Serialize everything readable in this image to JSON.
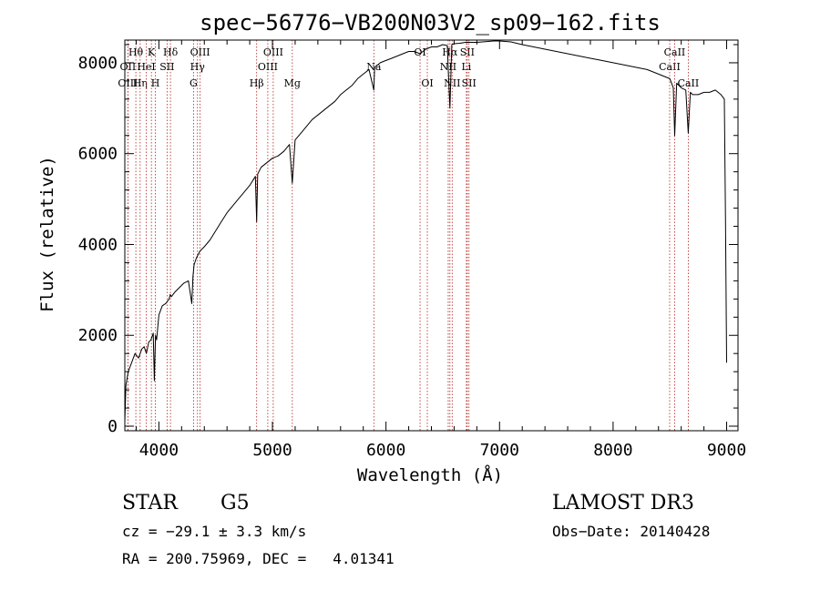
{
  "chart_data": {
    "type": "line",
    "title": "spec−56776−VB200N03V2_sp09−162.fits",
    "xlabel": "Wavelength (Å)",
    "ylabel": "Flux (relative)",
    "xlim": [
      3700,
      9100
    ],
    "ylim": [
      -100,
      8500
    ],
    "xticks": [
      4000,
      5000,
      6000,
      7000,
      8000,
      9000
    ],
    "yticks": [
      0,
      2000,
      4000,
      6000,
      8000
    ],
    "line_color": "#000000",
    "marker_color": "#b22222",
    "series": [
      {
        "x": [
          3700,
          3710,
          3730,
          3760,
          3790,
          3820,
          3850,
          3870,
          3890,
          3910,
          3930,
          3950,
          3960,
          3970,
          3980,
          4000,
          4030,
          4060,
          4090,
          4100,
          4110,
          4140,
          4180,
          4220,
          4260,
          4290,
          4300,
          4310,
          4330,
          4360,
          4400,
          4450,
          4500,
          4550,
          4600,
          4650,
          4700,
          4750,
          4800,
          4850,
          4861,
          4870,
          4900,
          4950,
          5000,
          5050,
          5100,
          5150,
          5175,
          5200,
          5250,
          5300,
          5350,
          5400,
          5450,
          5500,
          5550,
          5600,
          5650,
          5700,
          5750,
          5800,
          5850,
          5893,
          5900,
          5950,
          6000,
          6050,
          6100,
          6150,
          6200,
          6250,
          6300,
          6350,
          6400,
          6450,
          6500,
          6540,
          6563,
          6580,
          6600,
          6650,
          6700,
          6750,
          6800,
          6850,
          6900,
          6950,
          7000,
          7050,
          7100,
          7200,
          7300,
          7400,
          7500,
          7600,
          7700,
          7800,
          7900,
          8000,
          8100,
          8200,
          8300,
          8400,
          8450,
          8500,
          8530,
          8542,
          8560,
          8580,
          8600,
          8640,
          8662,
          8680,
          8700,
          8750,
          8800,
          8850,
          8900,
          8950,
          8980,
          8990,
          9000
        ],
        "y": [
          100,
          900,
          1200,
          1400,
          1600,
          1500,
          1700,
          1750,
          1600,
          1850,
          1900,
          2050,
          1000,
          2000,
          1900,
          2450,
          2650,
          2700,
          2800,
          2900,
          2850,
          2950,
          3050,
          3150,
          3200,
          2700,
          3300,
          3550,
          3700,
          3850,
          3950,
          4100,
          4300,
          4500,
          4700,
          4850,
          5000,
          5150,
          5300,
          5500,
          4500,
          5550,
          5700,
          5800,
          5900,
          5950,
          6050,
          6200,
          5350,
          6300,
          6450,
          6600,
          6750,
          6850,
          6950,
          7050,
          7150,
          7300,
          7400,
          7500,
          7650,
          7750,
          7850,
          7400,
          7900,
          8000,
          8050,
          8100,
          8150,
          8200,
          8250,
          8250,
          8200,
          8300,
          8350,
          8350,
          8400,
          8380,
          7000,
          8400,
          8420,
          8430,
          8450,
          8450,
          8450,
          8460,
          8470,
          8480,
          8480,
          8470,
          8460,
          8400,
          8350,
          8300,
          8250,
          8200,
          8150,
          8100,
          8050,
          8000,
          7950,
          7900,
          7850,
          7750,
          7700,
          7650,
          7450,
          6400,
          7550,
          7500,
          7450,
          7400,
          6450,
          7350,
          7300,
          7300,
          7350,
          7350,
          7400,
          7300,
          7200,
          4500,
          1400
        ]
      }
    ],
    "line_markers": [
      {
        "label": "Hθ",
        "x": 3797,
        "row": 0
      },
      {
        "label": "OII",
        "x": 3727,
        "row": 1
      },
      {
        "label": "OIII",
        "x": 3727,
        "row": 2
      },
      {
        "label": "Hη",
        "x": 3835,
        "row": 2
      },
      {
        "label": "HeI",
        "x": 3889,
        "row": 1
      },
      {
        "label": "K",
        "x": 3934,
        "row": 0
      },
      {
        "label": "H",
        "x": 3969,
        "row": 2
      },
      {
        "label": "SII",
        "x": 4072,
        "row": 1
      },
      {
        "label": "Hδ",
        "x": 4102,
        "row": 0
      },
      {
        "label": "OIII",
        "x": 4363,
        "row": 0
      },
      {
        "label": "Hγ",
        "x": 4340,
        "row": 1
      },
      {
        "label": "G",
        "x": 4305,
        "row": 2
      },
      {
        "label": "Hβ",
        "x": 4861,
        "row": 2
      },
      {
        "label": "OIII",
        "x": 5007,
        "row": 0
      },
      {
        "label": "OIII",
        "x": 4959,
        "row": 1
      },
      {
        "label": "Mg",
        "x": 5175,
        "row": 2
      },
      {
        "label": "Na",
        "x": 5893,
        "row": 1
      },
      {
        "label": "OI",
        "x": 6300,
        "row": 0
      },
      {
        "label": "OI",
        "x": 6364,
        "row": 2
      },
      {
        "label": "Hα",
        "x": 6563,
        "row": 0
      },
      {
        "label": "NII",
        "x": 6548,
        "row": 1
      },
      {
        "label": "NII",
        "x": 6583,
        "row": 2
      },
      {
        "label": "SII",
        "x": 6716,
        "row": 0
      },
      {
        "label": "Li",
        "x": 6708,
        "row": 1
      },
      {
        "label": "SII",
        "x": 6731,
        "row": 2
      },
      {
        "label": "CaII",
        "x": 8498,
        "row": 1
      },
      {
        "label": "CaII",
        "x": 8542,
        "row": 0
      },
      {
        "label": "CaII",
        "x": 8662,
        "row": 2
      }
    ]
  },
  "info": {
    "object_class": "STAR",
    "subclass": "G5",
    "survey": "LAMOST DR3",
    "cz": "cz = −29.1 ± 3.3 km/s",
    "obs_date": "Obs−Date: 20140428",
    "coords": "RA = 200.75969, DEC =   4.01341"
  }
}
